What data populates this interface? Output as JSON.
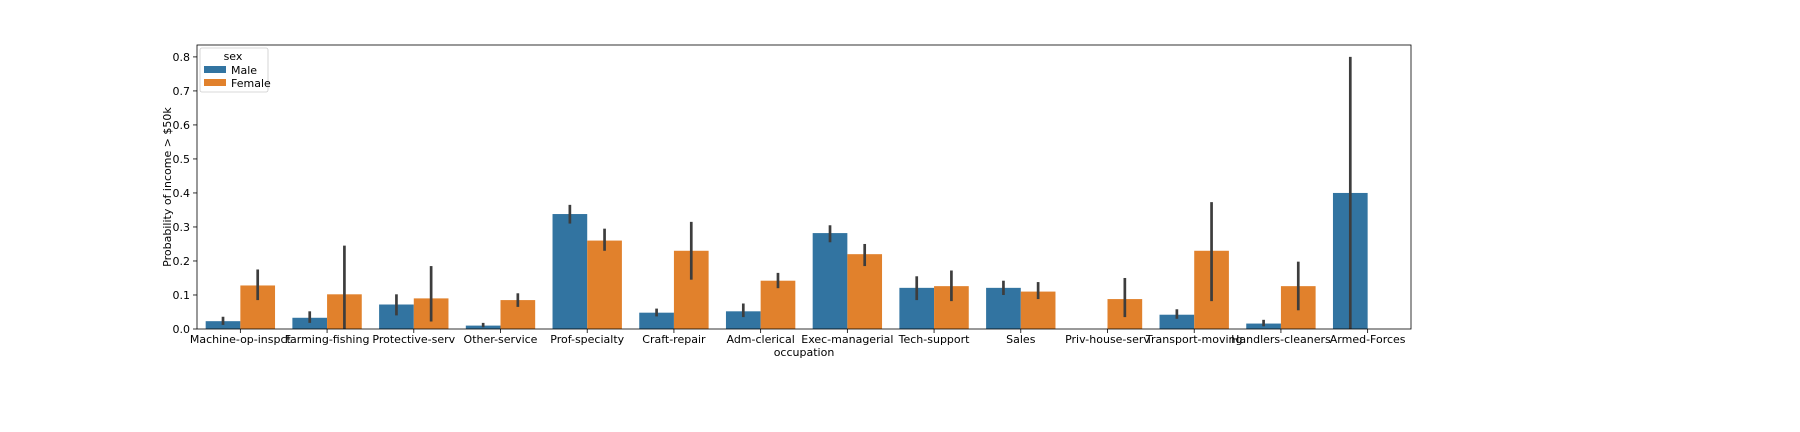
{
  "chart_data": {
    "type": "bar",
    "title": "",
    "xlabel": "occupation",
    "ylabel": "Probability of income > $50k",
    "ylim": [
      0,
      0.835
    ],
    "yticks": [
      "0.0",
      "0.1",
      "0.2",
      "0.3",
      "0.4",
      "0.5",
      "0.6",
      "0.7",
      "0.8"
    ],
    "grid": false,
    "legend": {
      "title": "sex",
      "position": "top-left"
    },
    "categories": [
      "Machine-op-inspct",
      "Farming-fishing",
      "Protective-serv",
      "Other-service",
      "Prof-specialty",
      "Craft-repair",
      "Adm-clerical",
      "Exec-managerial",
      "Tech-support",
      "Sales",
      "Priv-house-serv",
      "Transport-moving",
      "Handlers-cleaners",
      "Armed-Forces"
    ],
    "series": [
      {
        "name": "Male",
        "color": "#3274a1",
        "values": [
          0.023,
          0.033,
          0.072,
          0.01,
          0.338,
          0.048,
          0.052,
          0.282,
          0.121,
          0.121,
          null,
          0.042,
          0.016,
          0.4
        ],
        "ci_low": [
          0.012,
          0.018,
          0.04,
          0.005,
          0.31,
          0.037,
          0.035,
          0.255,
          0.085,
          0.1,
          null,
          0.03,
          0.008,
          0.0
        ],
        "ci_high": [
          0.036,
          0.052,
          0.102,
          0.018,
          0.365,
          0.06,
          0.075,
          0.305,
          0.155,
          0.142,
          null,
          0.058,
          0.027,
          0.8
        ]
      },
      {
        "name": "Female",
        "color": "#e1812c",
        "values": [
          0.128,
          0.102,
          0.09,
          0.085,
          0.26,
          0.23,
          0.142,
          0.22,
          0.126,
          0.11,
          0.088,
          0.23,
          0.126,
          null
        ],
        "ci_low": [
          0.085,
          0.0,
          0.022,
          0.065,
          0.23,
          0.145,
          0.12,
          0.185,
          0.082,
          0.088,
          0.035,
          0.082,
          0.055,
          null
        ],
        "ci_high": [
          0.175,
          0.245,
          0.185,
          0.105,
          0.295,
          0.315,
          0.165,
          0.25,
          0.172,
          0.138,
          0.15,
          0.373,
          0.198,
          null
        ]
      }
    ]
  }
}
